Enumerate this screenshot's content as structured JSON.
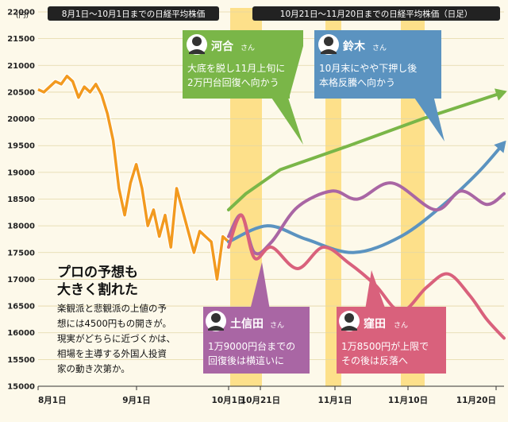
{
  "y_unit": "(円)",
  "period_labels": {
    "left": "8月1日〜10月1日までの日経平均株価",
    "right": "10月21日〜11月20日までの日経平均株価（日足）"
  },
  "headline": "プロの予想も大きく割れた",
  "headline_lines": [
    "プロの予想も",
    "大きく割れた"
  ],
  "body_lines": [
    "楽観派と悲観派の上値の予",
    "想には4500円もの開きが。",
    "現実がどちらに近づくかは、",
    "相場を主導する外国人投資",
    "家の動き次第か。"
  ],
  "experts": [
    {
      "name": "河合",
      "honorific": "さん",
      "lines": [
        "大底を脱し11月上旬に",
        "2万円台回復へ向かう"
      ],
      "color": "#7ab648"
    },
    {
      "name": "鈴木",
      "honorific": "さん",
      "lines": [
        "10月末にやや下押し後",
        "本格反騰へ向かう"
      ],
      "color": "#5b93c0"
    },
    {
      "name": "土信田",
      "honorific": "さん",
      "lines": [
        "1万9000円台までの",
        "回復後は横這いに"
      ],
      "color": "#a966a4"
    },
    {
      "name": "窪田",
      "honorific": "さん",
      "lines": [
        "1万8500円が上限で",
        "その後は反落へ"
      ],
      "color": "#d9617c"
    }
  ],
  "colors": {
    "actual": "#f29a1f",
    "highlight": "#fde08a",
    "label_bg": "#222222",
    "grid": "#e3d7a6"
  },
  "chart_data": {
    "type": "line",
    "ylabel": "(円)",
    "ylim": [
      15000,
      22000
    ],
    "yticks": [
      15000,
      15500,
      16000,
      16500,
      17000,
      17500,
      18000,
      18500,
      19000,
      19500,
      20000,
      20500,
      21000,
      21500,
      22000
    ],
    "x_tick_labels": [
      "8月1日",
      "9月1日",
      "10月1日",
      "10月21日",
      "11月1日",
      "11月10日",
      "11月20日"
    ],
    "series": [
      {
        "name": "日経平均株価（実績）",
        "color": "#f29a1f",
        "values": [
          [
            0,
            20550
          ],
          [
            2,
            20500
          ],
          [
            4,
            20600
          ],
          [
            6,
            20700
          ],
          [
            8,
            20650
          ],
          [
            10,
            20800
          ],
          [
            12,
            20700
          ],
          [
            14,
            20400
          ],
          [
            16,
            20600
          ],
          [
            18,
            20500
          ],
          [
            20,
            20650
          ],
          [
            22,
            20450
          ],
          [
            24,
            20100
          ],
          [
            26,
            19600
          ],
          [
            28,
            18700
          ],
          [
            30,
            18200
          ],
          [
            32,
            18800
          ],
          [
            34,
            19150
          ],
          [
            36,
            18700
          ],
          [
            38,
            18000
          ],
          [
            40,
            18300
          ],
          [
            42,
            17800
          ],
          [
            44,
            18200
          ],
          [
            46,
            17600
          ],
          [
            48,
            18700
          ],
          [
            50,
            18300
          ],
          [
            52,
            17900
          ],
          [
            54,
            17500
          ],
          [
            56,
            17900
          ],
          [
            58,
            17800
          ],
          [
            60,
            17700
          ],
          [
            62,
            17000
          ],
          [
            64,
            17800
          ],
          [
            66,
            17700
          ]
        ]
      },
      {
        "name": "河合さん",
        "color": "#7ab648",
        "values": [
          [
            66,
            18300
          ],
          [
            70,
            18600
          ],
          [
            78,
            19050
          ],
          [
            94,
            19500
          ],
          [
            111,
            20000
          ],
          [
            130,
            20500
          ]
        ]
      },
      {
        "name": "鈴木さん",
        "color": "#5b93c0",
        "values": [
          [
            66,
            17700
          ],
          [
            75,
            18000
          ],
          [
            84,
            17750
          ],
          [
            95,
            17500
          ],
          [
            106,
            17800
          ],
          [
            116,
            18400
          ],
          [
            124,
            19000
          ],
          [
            130,
            19550
          ]
        ]
      },
      {
        "name": "土信田さん",
        "color": "#a966a4",
        "values": [
          [
            66,
            17800
          ],
          [
            69,
            18200
          ],
          [
            72,
            17500
          ],
          [
            76,
            17700
          ],
          [
            82,
            18350
          ],
          [
            90,
            18650
          ],
          [
            96,
            18500
          ],
          [
            104,
            18800
          ],
          [
            114,
            18300
          ],
          [
            120,
            18650
          ],
          [
            126,
            18400
          ],
          [
            130,
            18600
          ]
        ]
      },
      {
        "name": "窪田さん",
        "color": "#d9617c",
        "values": [
          [
            66,
            17600
          ],
          [
            69,
            18200
          ],
          [
            72,
            17400
          ],
          [
            76,
            17600
          ],
          [
            82,
            17200
          ],
          [
            88,
            17600
          ],
          [
            94,
            17300
          ],
          [
            100,
            16900
          ],
          [
            106,
            16400
          ],
          [
            112,
            16850
          ],
          [
            117,
            17100
          ],
          [
            122,
            16700
          ],
          [
            126,
            16250
          ],
          [
            130,
            15900
          ]
        ]
      }
    ]
  }
}
